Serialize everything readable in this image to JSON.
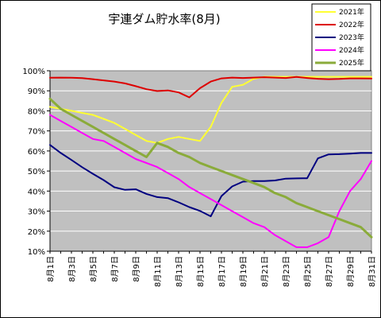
{
  "chart_data": {
    "type": "line",
    "title": "宇連ダム貯水率(8月)",
    "ylim": [
      10,
      100
    ],
    "y_ticks": [
      "10%",
      "20%",
      "30%",
      "40%",
      "50%",
      "60%",
      "70%",
      "80%",
      "90%",
      "100%"
    ],
    "x_tick_labels": [
      "8月1日",
      "8月3日",
      "8月5日",
      "8月7日",
      "8月9日",
      "8月11日",
      "8月13日",
      "8月15日",
      "8月17日",
      "8月19日",
      "8月21日",
      "8月23日",
      "8月25日",
      "8月27日",
      "8月29日",
      "8月31日"
    ],
    "x": [
      1,
      2,
      3,
      4,
      5,
      6,
      7,
      8,
      9,
      10,
      11,
      12,
      13,
      14,
      15,
      16,
      17,
      18,
      19,
      20,
      21,
      22,
      23,
      24,
      25,
      26,
      27,
      28,
      29,
      30,
      31
    ],
    "grid": true,
    "legend": "top-right",
    "plot_background": "#c0c0c0",
    "series": [
      {
        "name": "2021年",
        "color": "#ffff33",
        "values": [
          82,
          81,
          80,
          79,
          78,
          76,
          74,
          71,
          68,
          65,
          64,
          66,
          67,
          66,
          65,
          72,
          84,
          92,
          93,
          96,
          97,
          97,
          97,
          97,
          97,
          97,
          97,
          97,
          97,
          97,
          97
        ]
      },
      {
        "name": "2022年",
        "color": "#dd0000",
        "values": [
          96.5,
          96.6,
          96.5,
          96.3,
          95.8,
          95.2,
          94.6,
          93.7,
          92.3,
          90.8,
          89.9,
          90.2,
          89.2,
          86.7,
          91.3,
          94.6,
          96.2,
          96.6,
          96.4,
          96.6,
          96.8,
          96.6,
          96.4,
          96.9,
          96.4,
          96.0,
          95.8,
          95.9,
          96.2,
          96.2,
          96.1
        ]
      },
      {
        "name": "2023年",
        "color": "#000080",
        "values": [
          63,
          59,
          55.5,
          51.9,
          48.6,
          45.5,
          41.9,
          40.6,
          40.9,
          38.6,
          37,
          36.5,
          34.4,
          32,
          30.1,
          27.4,
          37.5,
          42.3,
          44.7,
          45,
          45,
          45.3,
          46.2,
          46.3,
          46.4,
          56.3,
          58.3,
          58.4,
          58.7,
          59,
          59
        ]
      },
      {
        "name": "2024年",
        "color": "#ff00ff",
        "values": [
          78,
          75,
          72,
          69,
          66,
          65,
          62,
          59,
          56,
          54,
          52,
          49,
          46,
          42,
          39,
          36,
          33,
          30,
          27,
          24,
          22,
          18,
          15,
          12,
          12,
          14,
          17,
          30,
          40,
          46,
          55
        ]
      },
      {
        "name": "2025年",
        "color": "#8aab3a",
        "values": [
          86,
          81,
          78,
          75,
          72,
          69,
          66,
          63,
          60,
          57,
          64,
          62,
          59,
          57,
          54,
          52,
          50,
          48,
          46,
          44,
          42,
          39,
          37,
          34,
          32,
          30,
          28,
          26,
          24,
          22,
          17
        ]
      }
    ]
  }
}
